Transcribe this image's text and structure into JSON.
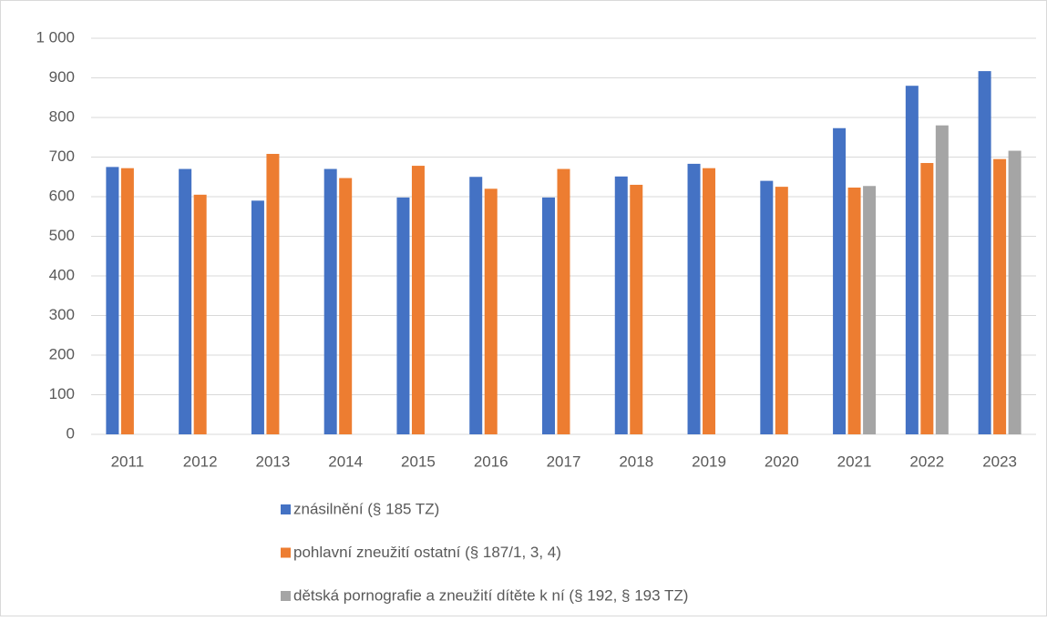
{
  "chart_data": {
    "type": "bar",
    "categories": [
      "2011",
      "2012",
      "2013",
      "2014",
      "2015",
      "2016",
      "2017",
      "2018",
      "2019",
      "2020",
      "2021",
      "2022",
      "2023"
    ],
    "series": [
      {
        "name": "znásilnění (§ 185 TZ)",
        "color": "#4472c4",
        "values": [
          675,
          670,
          590,
          670,
          598,
          650,
          598,
          651,
          683,
          640,
          773,
          880,
          917
        ]
      },
      {
        "name": "pohlavní zneužití ostatní (§ 187/1, 3, 4)",
        "color": "#ed7d31",
        "values": [
          672,
          605,
          708,
          647,
          678,
          620,
          670,
          630,
          672,
          625,
          623,
          685,
          695
        ]
      },
      {
        "name": "dětská pornografie a zneužití dítěte k ní (§ 192, § 193 TZ)",
        "color": "#a5a5a5",
        "values": [
          null,
          null,
          null,
          null,
          null,
          null,
          null,
          null,
          null,
          null,
          627,
          780,
          716
        ]
      }
    ],
    "ylim": [
      0,
      1000
    ],
    "yticks": [
      0,
      100,
      200,
      300,
      400,
      500,
      600,
      700,
      800,
      900,
      {
        "value": 1000,
        "label": "1 000"
      }
    ],
    "grid": true,
    "legend": "bottom"
  }
}
